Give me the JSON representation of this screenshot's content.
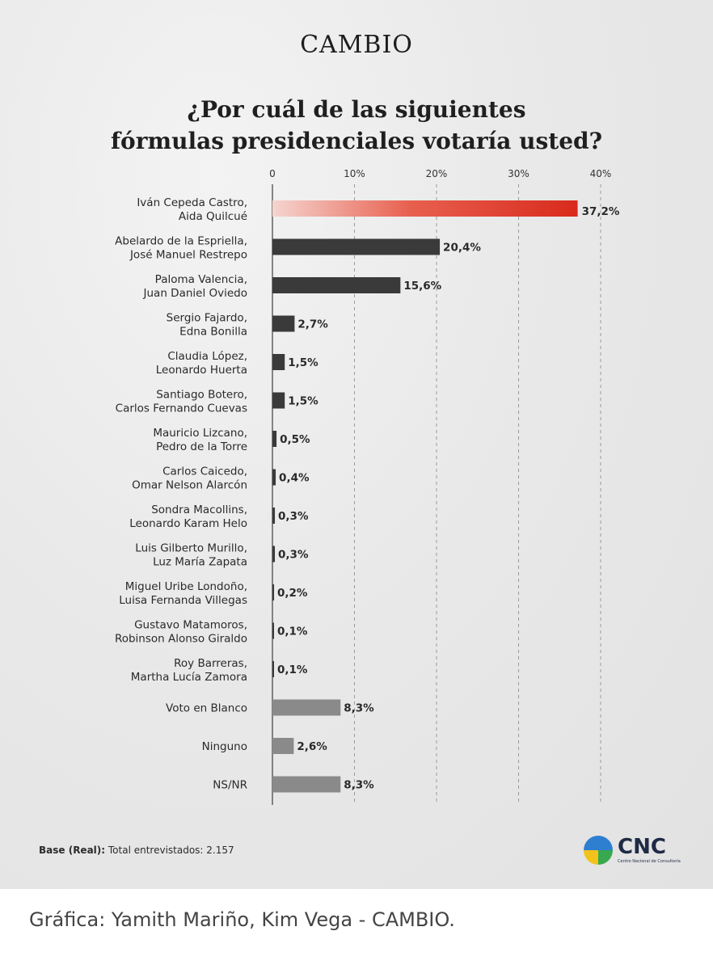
{
  "brand": "CAMBIO",
  "title_line1": "¿Por cuál de las siguientes",
  "title_line2": "fórmulas presidenciales votaría usted?",
  "chart_data": {
    "type": "bar",
    "orientation": "horizontal",
    "categories": [
      [
        "Iván Cepeda Castro,",
        "Aida Quilcué"
      ],
      [
        "Abelardo de la Espriella,",
        "José Manuel Restrepo"
      ],
      [
        "Paloma Valencia,",
        "Juan Daniel Oviedo"
      ],
      [
        "Sergio Fajardo,",
        "Edna Bonilla"
      ],
      [
        "Claudia López,",
        "Leonardo Huerta"
      ],
      [
        "Santiago Botero,",
        "Carlos Fernando Cuevas"
      ],
      [
        "Mauricio Lizcano,",
        "Pedro de la Torre"
      ],
      [
        "Carlos Caicedo,",
        "Omar Nelson Alarcón"
      ],
      [
        "Sondra Macollins,",
        "Leonardo Karam Helo"
      ],
      [
        "Luis Gilberto Murillo,",
        "Luz María Zapata"
      ],
      [
        "Miguel Uribe Londoño,",
        "Luisa Fernanda Villegas"
      ],
      [
        "Gustavo Matamoros,",
        "Robinson Alonso Giraldo"
      ],
      [
        "Roy Barreras,",
        "Martha Lucía Zamora"
      ],
      [
        "Voto en Blanco"
      ],
      [
        "Ninguno"
      ],
      [
        "NS/NR"
      ]
    ],
    "values": [
      37.2,
      20.4,
      15.6,
      2.7,
      1.5,
      1.5,
      0.5,
      0.4,
      0.3,
      0.3,
      0.2,
      0.1,
      0.1,
      8.3,
      2.6,
      8.3
    ],
    "value_labels": [
      "37,2%",
      "20,4%",
      "15,6%",
      "2,7%",
      "1,5%",
      "1,5%",
      "0,5%",
      "0,4%",
      "0,3%",
      "0,3%",
      "0,2%",
      "0,1%",
      "0,1%",
      "8,3%",
      "2,6%",
      "8,3%"
    ],
    "bar_groups": [
      "highlight",
      "candidate",
      "candidate",
      "candidate",
      "candidate",
      "candidate",
      "candidate",
      "candidate",
      "candidate",
      "candidate",
      "candidate",
      "candidate",
      "candidate",
      "other",
      "other",
      "other"
    ],
    "x_ticks": [
      0,
      10,
      20,
      30,
      40
    ],
    "x_tick_labels": [
      "0",
      "10%",
      "20%",
      "30%",
      "40%"
    ],
    "xlim": [
      0,
      40
    ],
    "grid": "dashed vertical",
    "colors": {
      "highlight": "#d92a1c",
      "candidate": "#3a3a3a",
      "other": "#8a8a8a",
      "highlight_label": "#d92a1c"
    }
  },
  "base_label": "Base (Real):",
  "base_text": "Total entrevistados: 2.157",
  "logo_text": "CNC",
  "logo_subtitle": "Centro Nacional de Consultoría",
  "credit": "Gráfica: Yamith Mariño, Kim Vega - CAMBIO."
}
